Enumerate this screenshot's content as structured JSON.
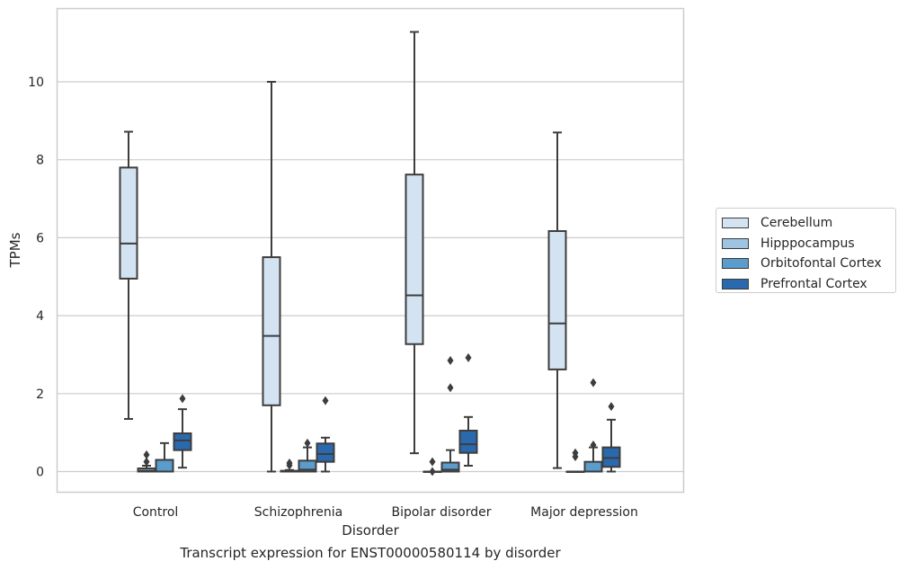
{
  "chart_data": {
    "type": "boxplot",
    "xlabel": "Disorder",
    "ylabel": "TPMs",
    "caption": "Transcript expression for ENST00000580114 by disorder",
    "ylim": [
      -0.55,
      11.9
    ],
    "yticks": [
      "0",
      "2",
      "4",
      "6",
      "8",
      "10"
    ],
    "categories": [
      "Control",
      "Schizophrenia",
      "Bipolar disorder",
      "Major depression"
    ],
    "grid": "horizontal",
    "legend_position": "right",
    "series": [
      {
        "name": "Cerebellum",
        "color": "#d3e3f2",
        "boxes": [
          {
            "whislo": 1.35,
            "q1": 4.95,
            "med": 5.85,
            "q3": 7.8,
            "whishi": 8.72,
            "fliers": []
          },
          {
            "whislo": 0.0,
            "q1": 1.7,
            "med": 3.48,
            "q3": 5.5,
            "whishi": 10.0,
            "fliers": []
          },
          {
            "whislo": 0.47,
            "q1": 3.27,
            "med": 4.52,
            "q3": 7.62,
            "whishi": 11.28,
            "fliers": []
          },
          {
            "whislo": 0.09,
            "q1": 2.62,
            "med": 3.8,
            "q3": 6.17,
            "whishi": 8.7,
            "fliers": []
          }
        ]
      },
      {
        "name": "Hipppocampus",
        "color": "#9dc4e0",
        "boxes": [
          {
            "whislo": 0.0,
            "q1": 0.0,
            "med": 0.02,
            "q3": 0.08,
            "whishi": 0.15,
            "fliers": [
              0.25,
              0.43
            ]
          },
          {
            "whislo": 0.0,
            "q1": 0.0,
            "med": 0.0,
            "q3": 0.02,
            "whishi": 0.04,
            "fliers": [
              0.16,
              0.22
            ]
          },
          {
            "whislo": 0.0,
            "q1": 0.0,
            "med": 0.0,
            "q3": 0.0,
            "whishi": 0.0,
            "fliers": [
              0.0,
              0.25
            ]
          },
          {
            "whislo": 0.0,
            "q1": 0.0,
            "med": 0.0,
            "q3": 0.0,
            "whishi": 0.0,
            "fliers": [
              0.38,
              0.48
            ]
          }
        ]
      },
      {
        "name": "Orbitofontal Cortex",
        "color": "#5a9ccc",
        "boxes": [
          {
            "whislo": 0.0,
            "q1": 0.0,
            "med": 0.0,
            "q3": 0.3,
            "whishi": 0.73,
            "fliers": []
          },
          {
            "whislo": 0.0,
            "q1": 0.0,
            "med": 0.05,
            "q3": 0.28,
            "whishi": 0.62,
            "fliers": [
              0.73
            ]
          },
          {
            "whislo": 0.0,
            "q1": 0.0,
            "med": 0.05,
            "q3": 0.23,
            "whishi": 0.55,
            "fliers": [
              2.15,
              2.85
            ]
          },
          {
            "whislo": 0.0,
            "q1": 0.0,
            "med": 0.0,
            "q3": 0.25,
            "whishi": 0.62,
            "fliers": [
              0.68,
              2.28
            ]
          }
        ]
      },
      {
        "name": "Prefrontal Cortex",
        "color": "#2a69ad",
        "boxes": [
          {
            "whislo": 0.1,
            "q1": 0.55,
            "med": 0.8,
            "q3": 0.98,
            "whishi": 1.6,
            "fliers": [
              1.87
            ]
          },
          {
            "whislo": 0.0,
            "q1": 0.25,
            "med": 0.45,
            "q3": 0.72,
            "whishi": 0.87,
            "fliers": [
              1.82
            ]
          },
          {
            "whislo": 0.15,
            "q1": 0.48,
            "med": 0.7,
            "q3": 1.05,
            "whishi": 1.4,
            "fliers": [
              2.92
            ]
          },
          {
            "whislo": 0.0,
            "q1": 0.12,
            "med": 0.35,
            "q3": 0.62,
            "whishi": 1.33,
            "fliers": [
              1.67
            ]
          }
        ]
      }
    ]
  }
}
